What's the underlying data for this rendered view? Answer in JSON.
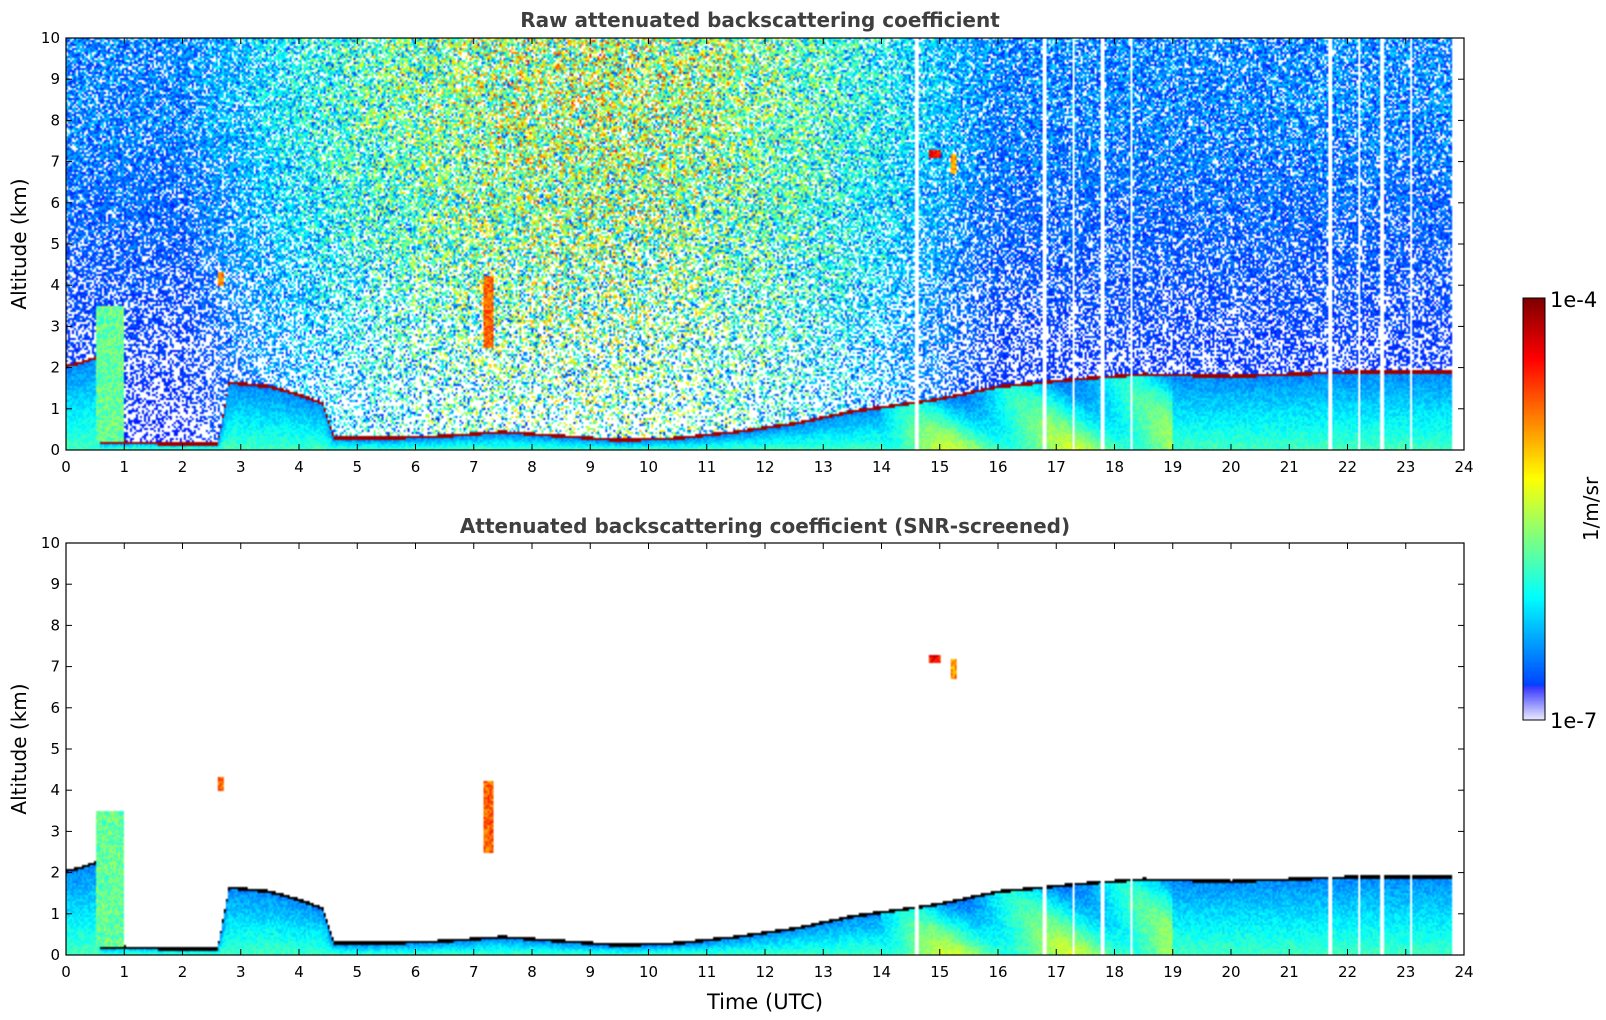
{
  "chart_data": [
    {
      "type": "heatmap",
      "title": "Raw attenuated backscattering coefficient",
      "xlabel": "",
      "ylabel": "Altitude (km)",
      "xlim": [
        0,
        24
      ],
      "ylim": [
        0,
        10
      ],
      "xticks": [
        "0",
        "1",
        "2",
        "3",
        "4",
        "5",
        "6",
        "7",
        "8",
        "9",
        "10",
        "11",
        "12",
        "13",
        "14",
        "15",
        "16",
        "17",
        "18",
        "19",
        "20",
        "21",
        "22",
        "23",
        "24"
      ],
      "yticks": [
        "0",
        "1",
        "2",
        "3",
        "4",
        "5",
        "6",
        "7",
        "8",
        "9",
        "10"
      ],
      "screened": false
    },
    {
      "type": "heatmap",
      "title": "Attenuated backscattering coefficient (SNR-screened)",
      "xlabel": "Time (UTC)",
      "ylabel": "Altitude (km)",
      "xlim": [
        0,
        24
      ],
      "ylim": [
        0,
        10
      ],
      "xticks": [
        "0",
        "1",
        "2",
        "3",
        "4",
        "5",
        "6",
        "7",
        "8",
        "9",
        "10",
        "11",
        "12",
        "13",
        "14",
        "15",
        "16",
        "17",
        "18",
        "19",
        "20",
        "21",
        "22",
        "23",
        "24"
      ],
      "yticks": [
        "0",
        "1",
        "2",
        "3",
        "4",
        "5",
        "6",
        "7",
        "8",
        "9",
        "10"
      ],
      "screened": true
    }
  ],
  "colorbar": {
    "label": "1/m/sr",
    "max_label": "1e-4",
    "min_label": "1e-7",
    "scale": "log",
    "colormap": "jet"
  },
  "structure": {
    "boundary_layer_top_km": [
      [
        0.0,
        2.0
      ],
      [
        0.3,
        2.1
      ],
      [
        0.5,
        2.2
      ],
      [
        0.6,
        0.15
      ],
      [
        1.0,
        0.15
      ],
      [
        2.0,
        0.1
      ],
      [
        2.6,
        0.1
      ],
      [
        2.8,
        1.6
      ],
      [
        3.5,
        1.5
      ],
      [
        4.0,
        1.3
      ],
      [
        4.4,
        1.1
      ],
      [
        4.6,
        0.25
      ],
      [
        5.5,
        0.25
      ],
      [
        6.5,
        0.3
      ],
      [
        7.0,
        0.35
      ],
      [
        7.5,
        0.4
      ],
      [
        8.5,
        0.3
      ],
      [
        9.5,
        0.2
      ],
      [
        10.5,
        0.25
      ],
      [
        11.5,
        0.4
      ],
      [
        12.5,
        0.6
      ],
      [
        13.0,
        0.75
      ],
      [
        13.5,
        0.9
      ],
      [
        14.0,
        1.0
      ],
      [
        15.0,
        1.2
      ],
      [
        16.0,
        1.5
      ],
      [
        17.5,
        1.7
      ],
      [
        18.5,
        1.8
      ],
      [
        20.0,
        1.75
      ],
      [
        22.0,
        1.85
      ],
      [
        23.8,
        1.85
      ]
    ],
    "elevated_features": [
      {
        "t0": 0.5,
        "t1": 1.0,
        "z0": 0.2,
        "z1": 3.5,
        "level": 0.55
      },
      {
        "t0": 7.15,
        "t1": 7.35,
        "z0": 2.5,
        "z1": 4.2,
        "level": 0.85
      },
      {
        "t0": 14.8,
        "t1": 15.0,
        "z0": 7.1,
        "z1": 7.3,
        "level": 0.95
      },
      {
        "t0": 15.2,
        "t1": 15.3,
        "z0": 6.7,
        "z1": 7.2,
        "level": 0.8
      },
      {
        "t0": 2.6,
        "t1": 2.7,
        "z0": 4.0,
        "z1": 4.3,
        "level": 0.85
      }
    ],
    "data_gaps": [
      14.6,
      16.8,
      17.3,
      17.8,
      18.3,
      21.7,
      22.2,
      22.6,
      23.1
    ],
    "no_data_after": 23.8
  }
}
